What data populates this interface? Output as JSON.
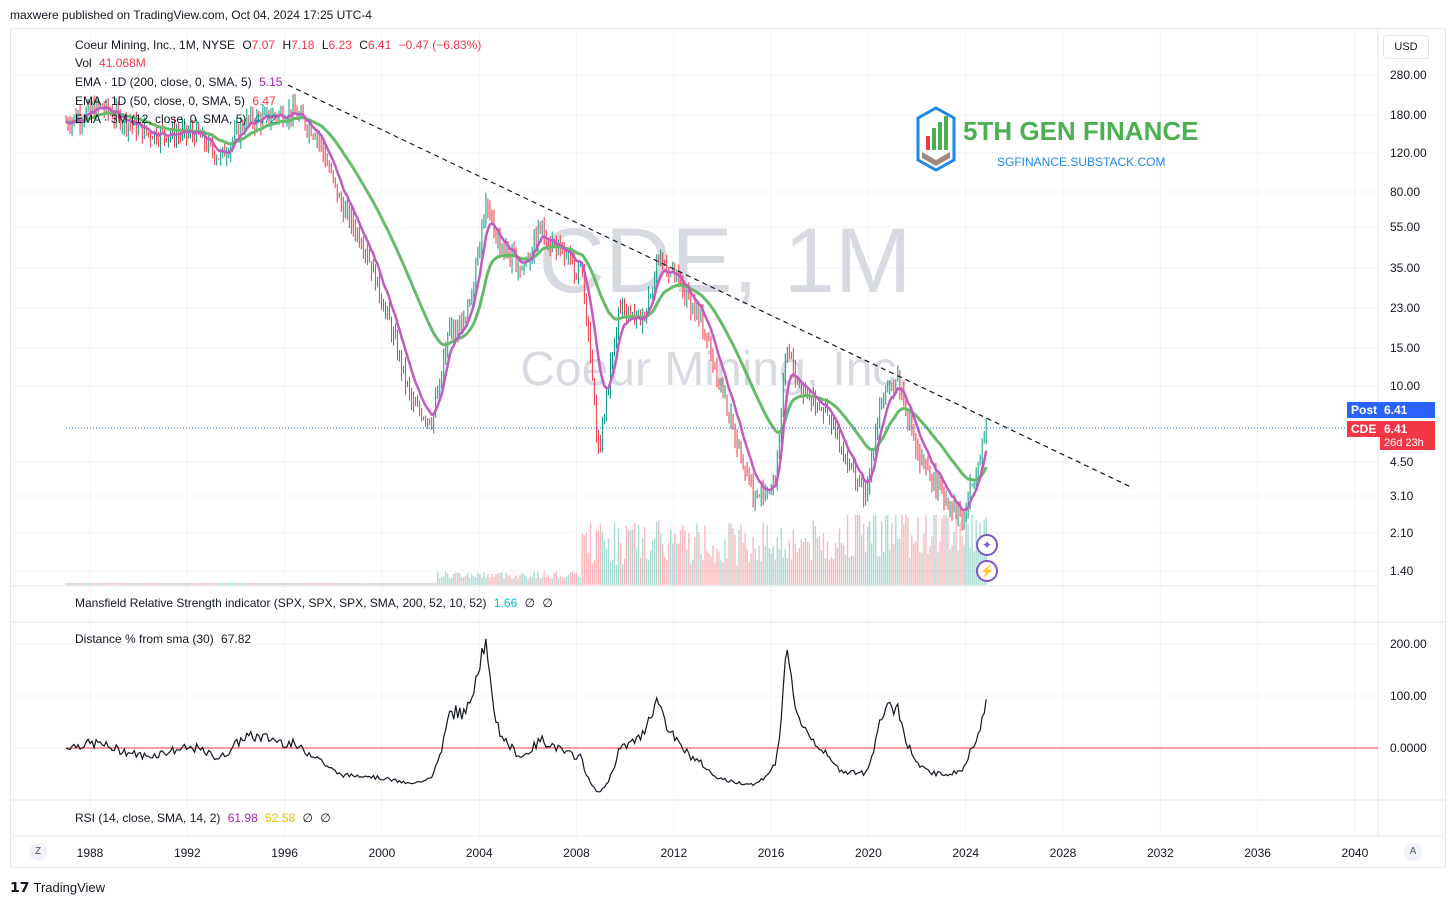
{
  "header": {
    "note": "maxwere published on TradingView.com, Oct 04, 2024 17:25 UTC-4"
  },
  "main_legend": {
    "symbol": "Coeur Mining, Inc., 1M, NYSE",
    "o_label": "O",
    "o": "7.07",
    "h_label": "H",
    "h": "7.18",
    "l_label": "L",
    "l": "6.23",
    "c_label": "C",
    "c": "6.41",
    "change": "−0.47 (−6.83%)",
    "vol_label": "Vol",
    "vol": "41.068M",
    "ema1_label": "EMA · 1D (200, close, 0, SMA, 5)",
    "ema1": "5.15",
    "ema2_label": "EMA · 1D (50, close, 0, SMA, 5)",
    "ema2": "6.47",
    "ema3_label": "EMA · 3M (12, close, 0, SMA, 5)",
    "ema3": "4.72"
  },
  "watermark": {
    "big": "CDE, 1M",
    "sub": "Coeur Mining, Inc."
  },
  "brand": {
    "title": "5TH GEN FINANCE",
    "url": "SGFINANCE.SUBSTACK.COM",
    "color": "#4caf50"
  },
  "currency": "USD",
  "price_axis": [
    "280.00",
    "180.00",
    "120.00",
    "80.00",
    "55.00",
    "35.00",
    "23.00",
    "15.00",
    "10.00",
    "4.50",
    "3.10",
    "2.10",
    "1.40"
  ],
  "price_tags": {
    "post_label": "Post",
    "post_value": "6.41",
    "symbol_label": "CDE",
    "symbol_value": "6.41",
    "countdown": "26d 23h"
  },
  "mansfield": {
    "label": "Mansfield Relative Strength indicator (SPX, SPX, SPX, SMA, 200, 52, 10, 52)",
    "value": "1.66",
    "e1": "∅",
    "e2": "∅"
  },
  "distance": {
    "label": "Distance % from sma (30)",
    "value": "67.82",
    "axis": [
      "200.00",
      "100.00",
      "0.0000"
    ]
  },
  "rsi": {
    "label": "RSI (14, close, SMA, 14, 2)",
    "v1": "61.98",
    "v2": "52.58",
    "e1": "∅",
    "e2": "∅"
  },
  "time_axis": [
    "1988",
    "1992",
    "1996",
    "2000",
    "2004",
    "2008",
    "2012",
    "2016",
    "2020",
    "2024",
    "2028",
    "2032",
    "2036",
    "2040"
  ],
  "corner_left": "Z",
  "corner_right": "A",
  "footer": {
    "logo": "TradingView"
  },
  "colors": {
    "up": "#089981",
    "down": "#f23645",
    "ema_purple": "#c05bc0",
    "ema_green": "#66bb6a",
    "watermark": "#d1d4dc"
  }
}
